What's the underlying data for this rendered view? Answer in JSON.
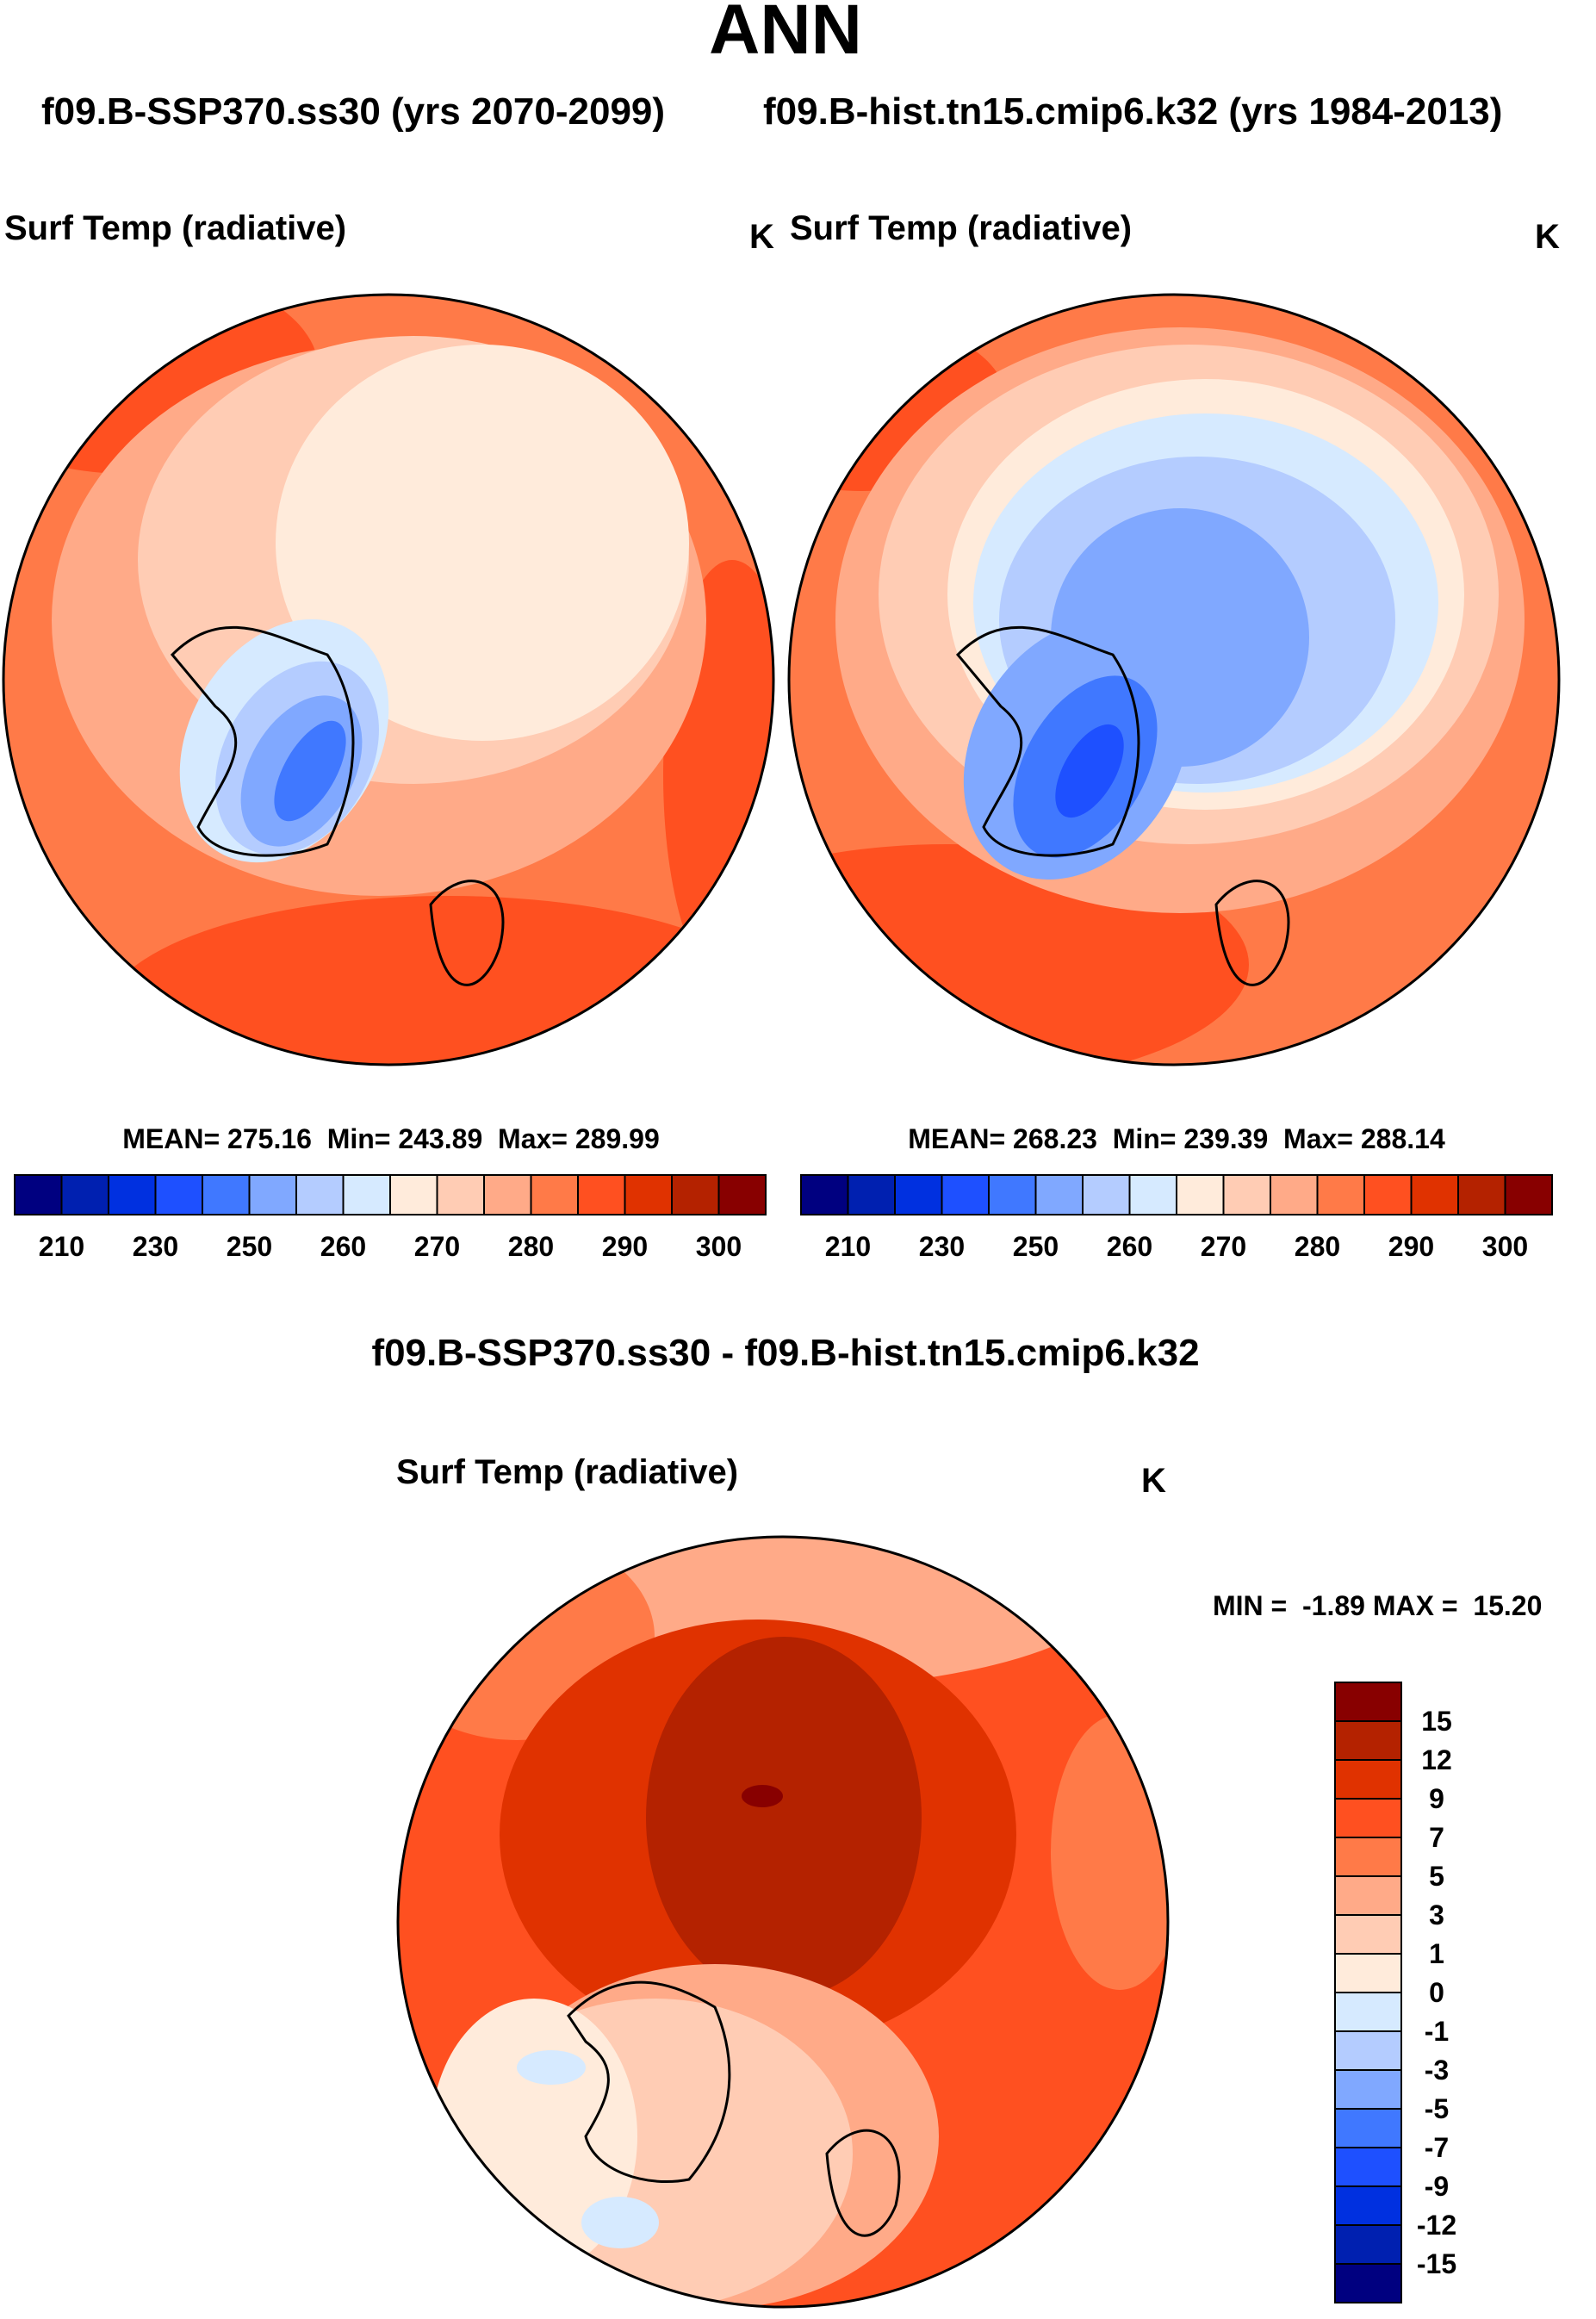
{
  "title": "ANN",
  "case1_title": "f09.B-SSP370.ss30 (yrs 2070-2099)",
  "case2_title": "f09.B-hist.tn15.cmip6.k32 (yrs 1984-2013)",
  "diff_title": "f09.B-SSP370.ss30 - f09.B-hist.tn15.cmip6.k32",
  "colors": [
    "#000080",
    "#0020B0",
    "#0030E0",
    "#1E50FF",
    "#4078FF",
    "#80A8FF",
    "#B4CCFF",
    "#D6EAFF",
    "#FFEBDB",
    "#FFCCB4",
    "#FFAA88",
    "#FF7A48",
    "#FF5020",
    "#E03200",
    "#B42200",
    "#880000"
  ],
  "chart_data": [
    {
      "type": "heatmap",
      "projection": "north polar stereographic",
      "variable": "Surf Temp (radiative)",
      "units": "K",
      "stats": "MEAN= 275.16  Min= 243.89  Max= 289.99",
      "mean": 275.16,
      "min": 243.89,
      "max": 289.99,
      "colorbar_labels": [
        "210",
        "230",
        "250",
        "260",
        "270",
        "280",
        "290",
        "300"
      ]
    },
    {
      "type": "heatmap",
      "projection": "north polar stereographic",
      "variable": "Surf Temp (radiative)",
      "units": "K",
      "stats": "MEAN= 268.23  Min= 239.39  Max= 288.14",
      "mean": 268.23,
      "min": 239.39,
      "max": 288.14,
      "colorbar_labels": [
        "210",
        "230",
        "250",
        "260",
        "270",
        "280",
        "290",
        "300"
      ]
    },
    {
      "type": "heatmap",
      "projection": "north polar stereographic",
      "variable": "Surf Temp (radiative)",
      "units": "K",
      "stats": "MIN =  -1.89 MAX =  15.20",
      "min": -1.89,
      "max": 15.2,
      "colorbar_labels": [
        "15",
        "12",
        "9",
        "7",
        "5",
        "3",
        "1",
        "0",
        "-1",
        "-3",
        "-5",
        "-7",
        "-9",
        "-12",
        "-15"
      ]
    }
  ]
}
